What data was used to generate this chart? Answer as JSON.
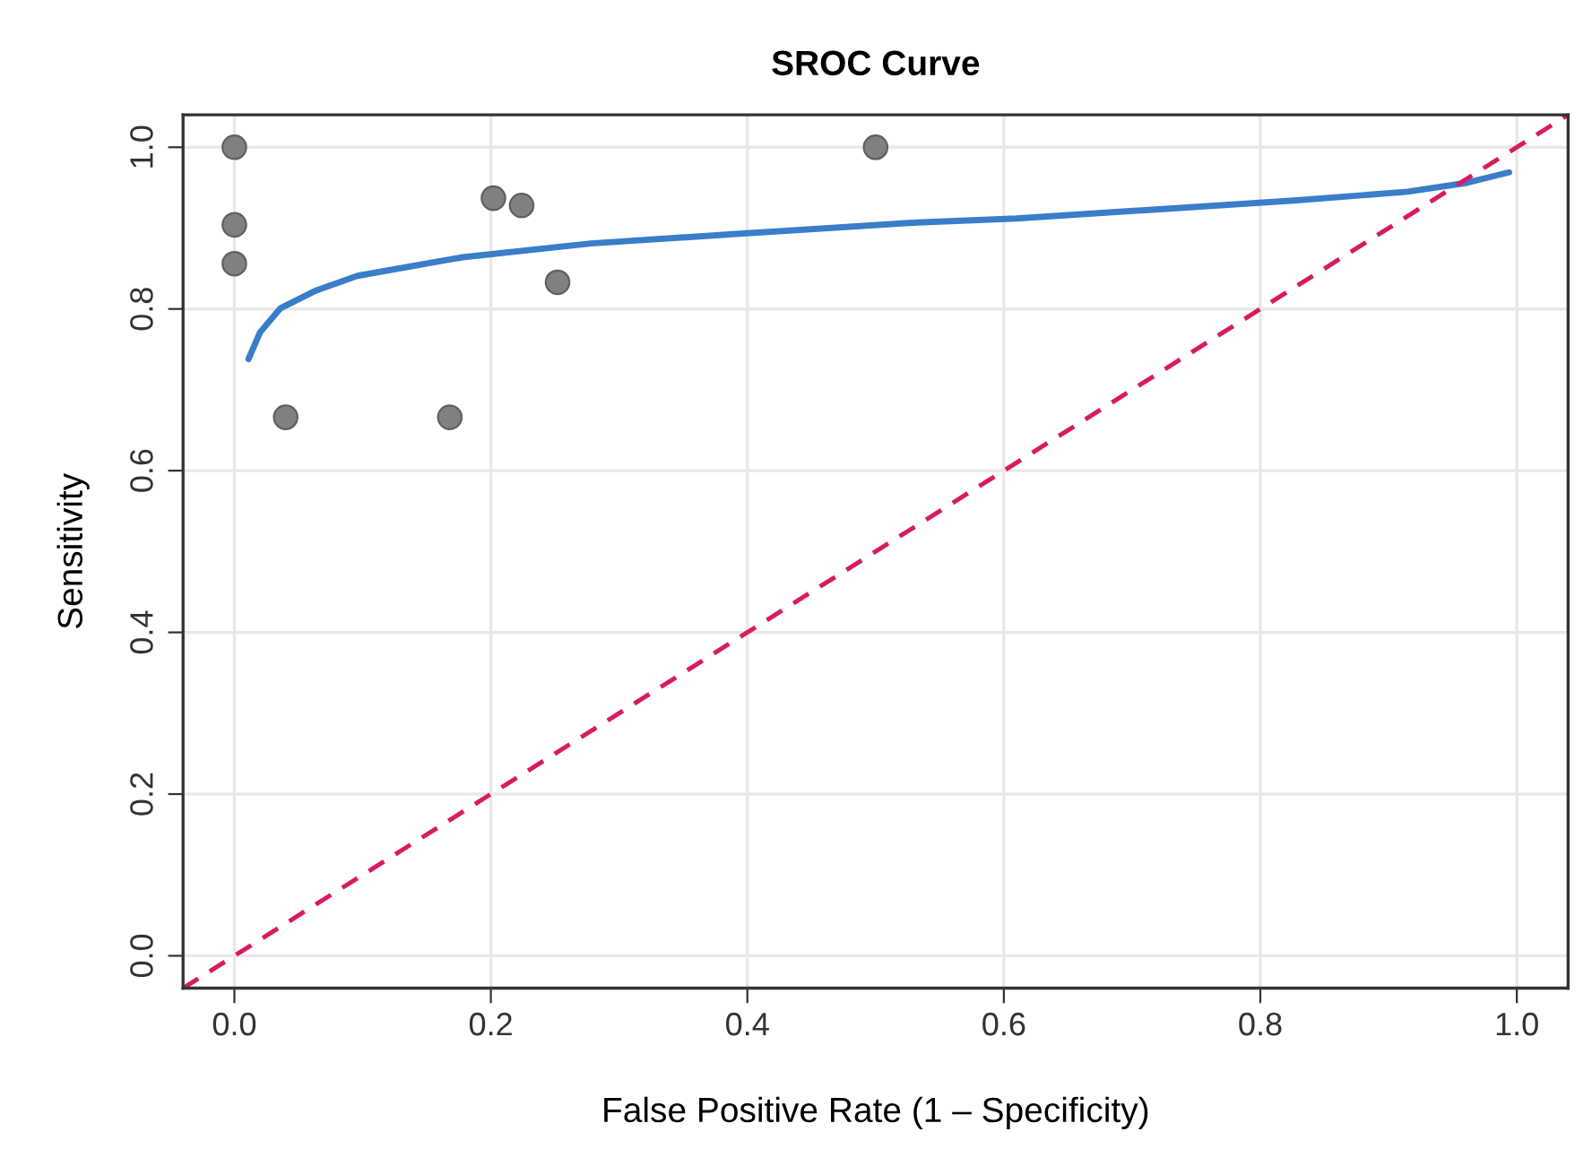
{
  "chart_data": {
    "type": "scatter",
    "title": "SROC Curve",
    "xlabel": "False Positive Rate (1 – Specificity)",
    "ylabel": "Sensitivity",
    "xlim": [
      -0.04,
      1.04
    ],
    "ylim": [
      -0.04,
      1.04
    ],
    "xticks": [
      {
        "value": 0,
        "label": "0.0"
      },
      0.2,
      0.4,
      0.6,
      0.8,
      {
        "value": 1,
        "label": "1.0"
      }
    ],
    "yticks": [
      {
        "value": 0,
        "label": "0.0"
      },
      0.2,
      0.4,
      0.6,
      0.8,
      {
        "value": 1,
        "label": "1.0"
      }
    ],
    "grid": true,
    "series": [
      {
        "color": "#808080",
        "marker": "circle",
        "x": [
          0,
          0,
          0,
          0.04,
          0.168,
          0.202,
          0.224,
          0.252,
          0.5
        ],
        "values": [
          1.0,
          0.904,
          0.856,
          0.666,
          0.666,
          0.937,
          0.928,
          0.833,
          1.0
        ]
      },
      {
        "type": "line",
        "color": "#3a7dc9",
        "line_style": "solid",
        "x": [
          0.011,
          0.02,
          0.036,
          0.064,
          0.096,
          0.178,
          0.278,
          0.394,
          0.533,
          0.61,
          0.826,
          0.915,
          0.961,
          0.994
        ],
        "values": [
          0.738,
          0.771,
          0.801,
          0.823,
          0.841,
          0.864,
          0.881,
          0.893,
          0.907,
          0.912,
          0.934,
          0.945,
          0.956,
          0.969
        ]
      },
      {
        "type": "line",
        "color": "#d81b60",
        "line_style": "dashed",
        "x": [
          -0.04,
          1.04
        ],
        "values": [
          -0.04,
          1.04
        ]
      }
    ]
  }
}
